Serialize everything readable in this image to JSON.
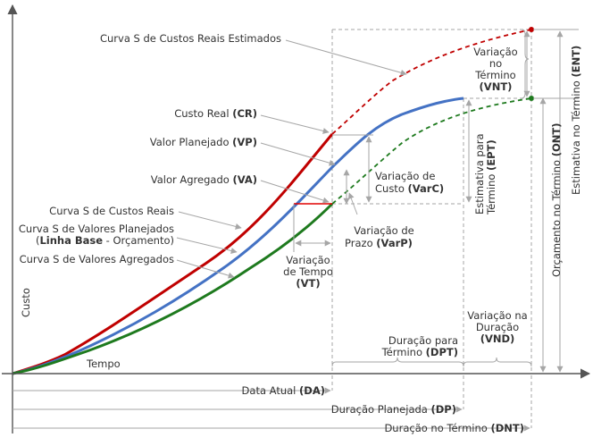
{
  "labels": {
    "ent_est_curve": "Curva S de Custos Reais Estimados",
    "custo_real": "Custo Real ",
    "custo_real_abbr": "(CR)",
    "valor_planejado": "Valor Planejado ",
    "valor_planejado_abbr": "(VP)",
    "valor_agregado": "Valor Agregado ",
    "valor_agregado_abbr": "(VA)",
    "curva_custos_reais": "Curva S de Custos Reais",
    "curva_planejados_1": "Curva S de Valores Planejados",
    "curva_planejados_2a": "(",
    "curva_planejados_2b": "Linha Base",
    "curva_planejados_2c": " - Orçamento)",
    "curva_agregados": "Curva S de Valores Agregados",
    "variacao_custo_1": "Variação de",
    "variacao_custo_2": "Custo ",
    "variacao_custo_abbr": "(VarC)",
    "variacao_prazo_1": "Variação de",
    "variacao_prazo_2": "Prazo ",
    "variacao_prazo_abbr": "(VarP)",
    "variacao_tempo_1": "Variação",
    "variacao_tempo_2": "de Tempo",
    "variacao_tempo_abbr": "(VT)",
    "vnt_1": "Variação",
    "vnt_2": "no",
    "vnt_3": "Término",
    "vnt_abbr": "(VNT)",
    "ept_1": "Estimativa para",
    "ept_2": "Término ",
    "ept_abbr": "(EPT)",
    "ont": "Orçamento no Término ",
    "ont_abbr": "(ONT)",
    "ent": "Estimativa no Término ",
    "ent_abbr": "(ENT)",
    "custo_axis": "Custo",
    "tempo_axis": "Tempo",
    "dpt_1": "Duração para",
    "dpt_2": "Término ",
    "dpt_abbr": "(DPT)",
    "vnd_1": "Variação na",
    "vnd_2": "Duração",
    "vnd_abbr": "(VND)",
    "data_atual": "Data Atual ",
    "data_atual_abbr": "(DA)",
    "duracao_planejada": "Duração Planejada ",
    "duracao_planejada_abbr": "(DP)",
    "duracao_termino": "Duração no Término ",
    "duracao_termino_abbr": "(DNT)"
  },
  "colors": {
    "actual_cost": "#c00000",
    "planned_value": "#4472c4",
    "earned_value": "#1e7a1e",
    "text": "#333333",
    "pointer": "#a6a6a6"
  }
}
